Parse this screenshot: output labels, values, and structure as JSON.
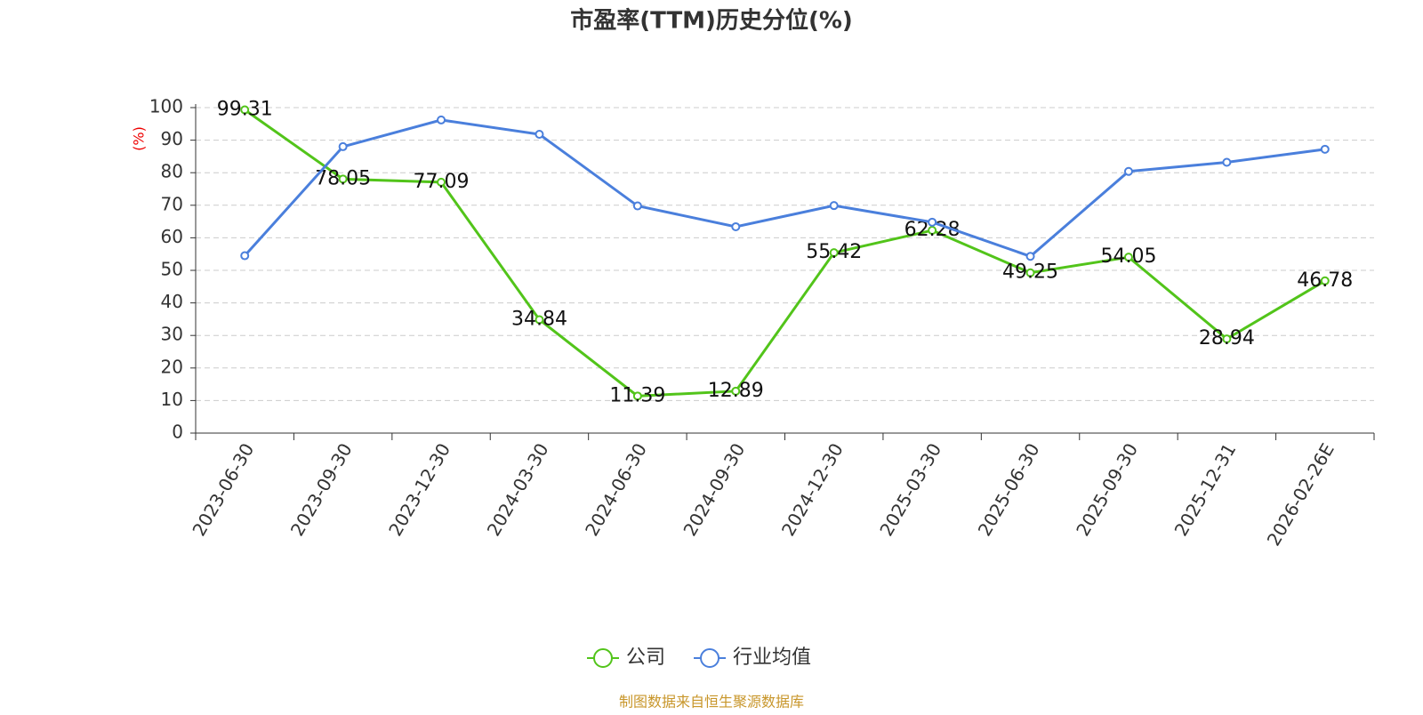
{
  "chart_data": {
    "type": "line",
    "title": "市盈率(TTM)历史分位(%)",
    "y_label": "(%)",
    "categories": [
      "2023-06-30",
      "2023-09-30",
      "2023-12-30",
      "2024-03-30",
      "2024-06-30",
      "2024-09-30",
      "2024-12-30",
      "2025-03-30",
      "2025-06-30",
      "2025-09-30",
      "2025-12-31",
      "2026-02-26E"
    ],
    "series": [
      {
        "name": "公司",
        "color": "#52c41a",
        "values": [
          99.31,
          78.05,
          77.09,
          34.84,
          11.39,
          12.89,
          55.42,
          62.28,
          49.25,
          54.05,
          28.94,
          46.78
        ],
        "show_labels": true
      },
      {
        "name": "行业均值",
        "color": "#4a7fdc",
        "values": [
          54.5,
          88,
          96.2,
          91.8,
          69.8,
          63.4,
          69.9,
          64.8,
          54.3,
          80.4,
          83.2,
          87.2
        ],
        "show_labels": false
      }
    ],
    "ylim": [
      0,
      100
    ],
    "yticks": [
      0,
      10,
      20,
      30,
      40,
      50,
      60,
      70,
      80,
      90,
      100
    ],
    "grid": true,
    "legend": "bottom",
    "source": "制图数据来自恒生聚源数据库"
  }
}
